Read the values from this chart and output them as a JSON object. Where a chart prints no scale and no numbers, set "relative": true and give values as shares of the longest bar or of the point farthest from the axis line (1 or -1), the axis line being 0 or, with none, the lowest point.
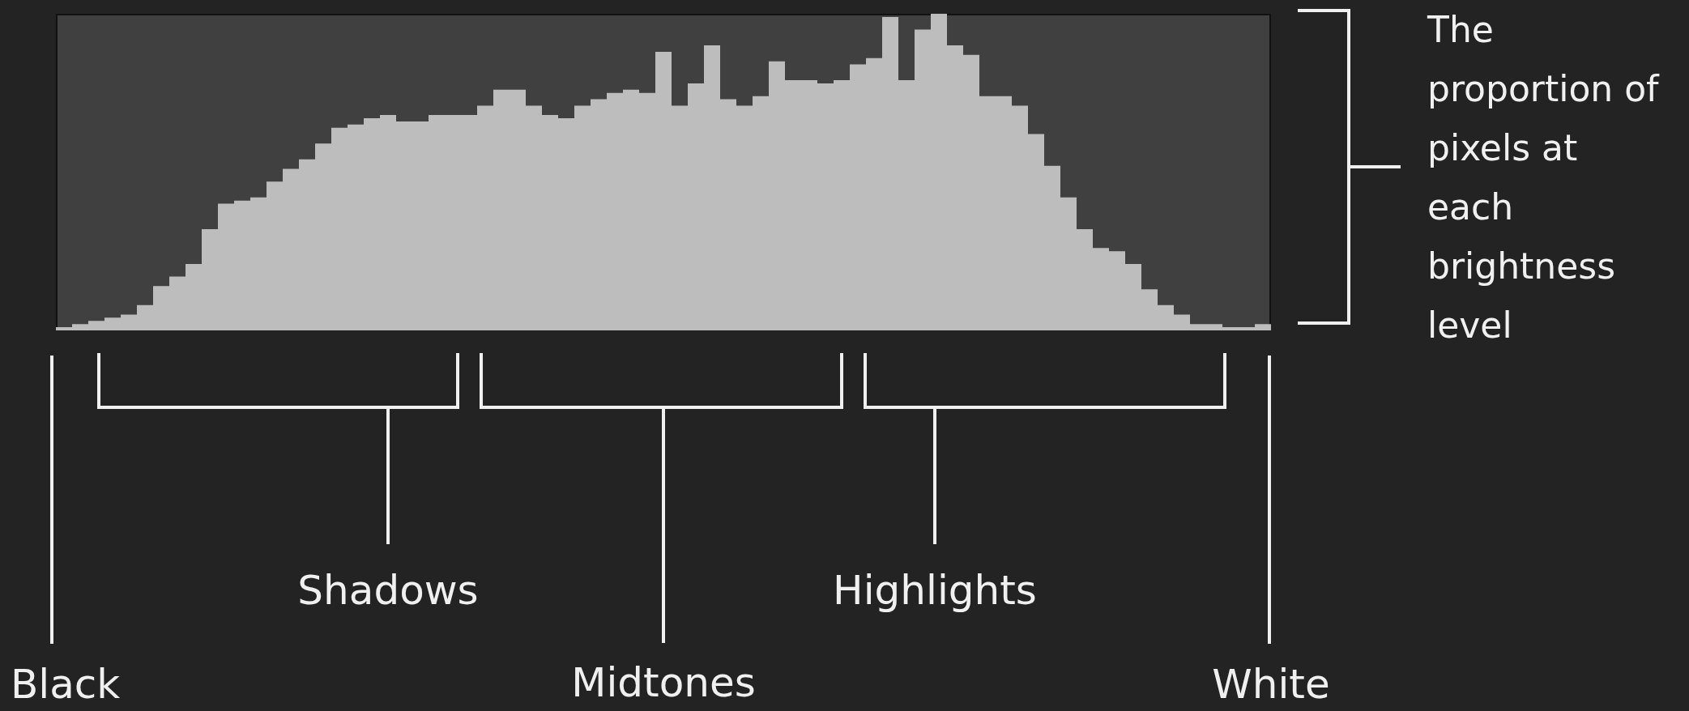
{
  "chart_data": {
    "type": "area",
    "relative": true,
    "categories": [
      null,
      null,
      null,
      null,
      null,
      null,
      null,
      null,
      null,
      null,
      null,
      null,
      null,
      null,
      null,
      null,
      null,
      null,
      null,
      null,
      null,
      null,
      null,
      null,
      null,
      null,
      null,
      null,
      null,
      null,
      null,
      null,
      null,
      null,
      null,
      null,
      null,
      null,
      null,
      null,
      null,
      null,
      null,
      null,
      null,
      null,
      null,
      null,
      null,
      null,
      null,
      null,
      null,
      null,
      null,
      null,
      null,
      null,
      null,
      null,
      null,
      null,
      null,
      null,
      null,
      null,
      null,
      null,
      null,
      null,
      null,
      null,
      null,
      null,
      null,
      null
    ],
    "series": [
      {
        "color": "#bdbdbd",
        "values": [
          0.01,
          0.02,
          0.03,
          0.04,
          0.05,
          0.08,
          0.14,
          0.17,
          0.21,
          0.32,
          0.4,
          0.41,
          0.42,
          0.47,
          0.51,
          0.54,
          0.59,
          0.64,
          0.65,
          0.67,
          0.68,
          0.66,
          0.66,
          0.68,
          0.68,
          0.68,
          0.71,
          0.76,
          0.76,
          0.71,
          0.68,
          0.67,
          0.71,
          0.73,
          0.75,
          0.76,
          0.75,
          0.88,
          0.71,
          0.78,
          0.9,
          0.73,
          0.71,
          0.74,
          0.85,
          0.79,
          0.79,
          0.78,
          0.79,
          0.84,
          0.86,
          0.99,
          0.79,
          0.95,
          1,
          0.9,
          0.87,
          0.74,
          0.74,
          0.71,
          0.62,
          0.52,
          0.42,
          0.32,
          0.26,
          0.25,
          0.21,
          0.13,
          0.08,
          0.05,
          0.02,
          0.02,
          0.01,
          0.01,
          0.02,
          0.01
        ]
      }
    ],
    "annotations": [
      "Black",
      "Shadows",
      "Midtones",
      "Highlights",
      "White",
      "The proportion of pixels at each brightness level"
    ]
  }
}
